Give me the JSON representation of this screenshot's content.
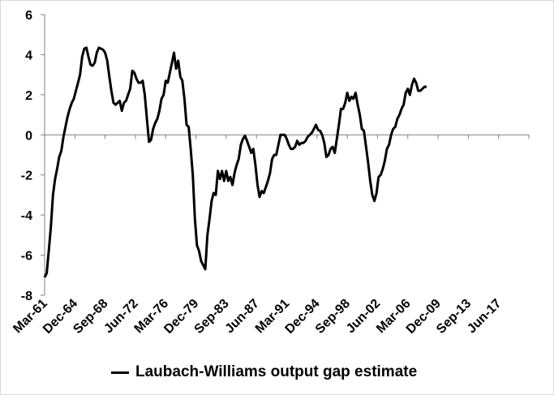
{
  "chart_data": {
    "type": "line",
    "title": "",
    "xlabel": "",
    "ylabel": "",
    "ylim": [
      -8,
      6
    ],
    "yticks": [
      -8,
      -6,
      -4,
      -2,
      0,
      2,
      4,
      6
    ],
    "xlim": [
      1961.0,
      2019.0
    ],
    "x_tick_labels": [
      "Mar-61",
      "Dec-64",
      "Sep-68",
      "Jun-72",
      "Mar-76",
      "Dec-79",
      "Sep-83",
      "Jun-87",
      "Mar-91",
      "Dec-94",
      "Sep-98",
      "Jun-02",
      "Mar-06",
      "Dec-09",
      "Sep-13",
      "Jun-17"
    ],
    "grid": false,
    "legend_position": "bottom",
    "series": [
      {
        "name": "Laubach-Williams output gap estimate",
        "color": "#000000",
        "points": [
          [
            1961.0,
            -7.1
          ],
          [
            1961.25,
            -6.9
          ],
          [
            1961.5,
            -5.8
          ],
          [
            1961.75,
            -4.6
          ],
          [
            1962.0,
            -3.0
          ],
          [
            1962.25,
            -2.2
          ],
          [
            1962.5,
            -1.7
          ],
          [
            1962.75,
            -1.1
          ],
          [
            1963.0,
            -0.8
          ],
          [
            1963.25,
            -0.1
          ],
          [
            1963.5,
            0.4
          ],
          [
            1963.75,
            0.9
          ],
          [
            1964.0,
            1.3
          ],
          [
            1964.25,
            1.6
          ],
          [
            1964.5,
            1.8
          ],
          [
            1964.75,
            2.2
          ],
          [
            1965.0,
            2.6
          ],
          [
            1965.25,
            3.0
          ],
          [
            1965.5,
            3.9
          ],
          [
            1965.75,
            4.3
          ],
          [
            1966.0,
            4.35
          ],
          [
            1966.25,
            3.9
          ],
          [
            1966.5,
            3.5
          ],
          [
            1966.75,
            3.45
          ],
          [
            1967.0,
            3.6
          ],
          [
            1967.25,
            4.1
          ],
          [
            1967.5,
            4.35
          ],
          [
            1967.75,
            4.3
          ],
          [
            1968.0,
            4.25
          ],
          [
            1968.25,
            4.1
          ],
          [
            1968.5,
            3.7
          ],
          [
            1968.75,
            2.9
          ],
          [
            1969.0,
            2.2
          ],
          [
            1969.25,
            1.6
          ],
          [
            1969.5,
            1.5
          ],
          [
            1969.75,
            1.6
          ],
          [
            1970.0,
            1.7
          ],
          [
            1970.25,
            1.2
          ],
          [
            1970.5,
            1.6
          ],
          [
            1970.75,
            1.7
          ],
          [
            1971.0,
            2.0
          ],
          [
            1971.25,
            2.3
          ],
          [
            1971.5,
            3.2
          ],
          [
            1971.75,
            3.1
          ],
          [
            1972.0,
            2.8
          ],
          [
            1972.25,
            2.6
          ],
          [
            1972.5,
            2.6
          ],
          [
            1972.75,
            2.7
          ],
          [
            1973.0,
            2.0
          ],
          [
            1973.25,
            0.8
          ],
          [
            1973.5,
            -0.35
          ],
          [
            1973.75,
            -0.25
          ],
          [
            1974.0,
            0.3
          ],
          [
            1974.25,
            0.6
          ],
          [
            1974.5,
            0.8
          ],
          [
            1974.75,
            1.2
          ],
          [
            1975.0,
            1.8
          ],
          [
            1975.25,
            2.0
          ],
          [
            1975.5,
            2.7
          ],
          [
            1975.75,
            2.6
          ],
          [
            1976.0,
            3.1
          ],
          [
            1976.25,
            3.6
          ],
          [
            1976.5,
            4.1
          ],
          [
            1976.75,
            3.3
          ],
          [
            1977.0,
            3.7
          ],
          [
            1977.25,
            2.9
          ],
          [
            1977.5,
            2.7
          ],
          [
            1977.75,
            1.8
          ],
          [
            1978.0,
            0.5
          ],
          [
            1978.25,
            0.4
          ],
          [
            1978.5,
            -0.7
          ],
          [
            1978.75,
            -2.0
          ],
          [
            1979.0,
            -4.2
          ],
          [
            1979.25,
            -5.5
          ],
          [
            1979.5,
            -5.8
          ],
          [
            1979.75,
            -6.3
          ],
          [
            1980.0,
            -6.5
          ],
          [
            1980.25,
            -6.7
          ],
          [
            1980.5,
            -5.0
          ],
          [
            1980.75,
            -4.2
          ],
          [
            1981.0,
            -3.3
          ],
          [
            1981.25,
            -2.9
          ],
          [
            1981.5,
            -3.0
          ],
          [
            1981.75,
            -1.8
          ],
          [
            1982.0,
            -2.2
          ],
          [
            1982.25,
            -1.8
          ],
          [
            1982.5,
            -2.3
          ],
          [
            1982.75,
            -1.8
          ],
          [
            1983.0,
            -2.3
          ],
          [
            1983.25,
            -2.1
          ],
          [
            1983.5,
            -2.5
          ],
          [
            1983.75,
            -1.9
          ],
          [
            1984.0,
            -1.5
          ],
          [
            1984.25,
            -1.2
          ],
          [
            1984.5,
            -0.5
          ],
          [
            1984.75,
            -0.2
          ],
          [
            1985.0,
            -0.05
          ],
          [
            1985.25,
            -0.3
          ],
          [
            1985.5,
            -0.6
          ],
          [
            1985.75,
            -0.9
          ],
          [
            1986.0,
            -0.7
          ],
          [
            1986.25,
            -1.5
          ],
          [
            1986.5,
            -2.5
          ],
          [
            1986.75,
            -3.1
          ],
          [
            1987.0,
            -2.8
          ],
          [
            1987.25,
            -2.9
          ],
          [
            1987.5,
            -2.6
          ],
          [
            1987.75,
            -2.3
          ],
          [
            1988.0,
            -1.9
          ],
          [
            1988.25,
            -1.2
          ],
          [
            1988.5,
            -1.0
          ],
          [
            1988.75,
            -1.0
          ],
          [
            1989.0,
            -0.5
          ],
          [
            1989.25,
            0.0
          ],
          [
            1989.5,
            0.0
          ],
          [
            1989.75,
            0.0
          ],
          [
            1990.0,
            -0.2
          ],
          [
            1990.25,
            -0.5
          ],
          [
            1990.5,
            -0.7
          ],
          [
            1990.75,
            -0.7
          ],
          [
            1991.0,
            -0.6
          ],
          [
            1991.25,
            -0.3
          ],
          [
            1991.5,
            -0.5
          ],
          [
            1991.75,
            -0.4
          ],
          [
            1992.0,
            -0.4
          ],
          [
            1992.25,
            -0.3
          ],
          [
            1992.5,
            -0.1
          ],
          [
            1992.75,
            0.0
          ],
          [
            1993.0,
            0.1
          ],
          [
            1993.25,
            0.3
          ],
          [
            1993.5,
            0.5
          ],
          [
            1993.75,
            0.25
          ],
          [
            1994.0,
            0.2
          ],
          [
            1994.25,
            0.0
          ],
          [
            1994.5,
            -0.4
          ],
          [
            1994.75,
            -1.1
          ],
          [
            1995.0,
            -1.0
          ],
          [
            1995.25,
            -0.7
          ],
          [
            1995.5,
            -0.6
          ],
          [
            1995.75,
            -0.9
          ],
          [
            1996.0,
            -0.2
          ],
          [
            1996.25,
            0.5
          ],
          [
            1996.5,
            1.3
          ],
          [
            1996.75,
            1.3
          ],
          [
            1997.0,
            1.6
          ],
          [
            1997.25,
            2.1
          ],
          [
            1997.5,
            1.7
          ],
          [
            1997.75,
            1.9
          ],
          [
            1998.0,
            1.8
          ],
          [
            1998.25,
            2.1
          ],
          [
            1998.5,
            1.5
          ],
          [
            1998.75,
            1.0
          ],
          [
            1999.0,
            0.3
          ],
          [
            1999.25,
            0.2
          ],
          [
            1999.5,
            -0.6
          ],
          [
            1999.75,
            -1.4
          ],
          [
            2000.0,
            -2.3
          ],
          [
            2000.25,
            -3.0
          ],
          [
            2000.5,
            -3.3
          ],
          [
            2000.75,
            -2.9
          ],
          [
            2001.0,
            -2.1
          ],
          [
            2001.25,
            -2.0
          ],
          [
            2001.5,
            -1.7
          ],
          [
            2001.75,
            -1.3
          ],
          [
            2002.0,
            -0.7
          ],
          [
            2002.25,
            -0.5
          ],
          [
            2002.5,
            0.0
          ],
          [
            2002.75,
            0.3
          ],
          [
            2003.0,
            0.4
          ],
          [
            2003.25,
            0.8
          ],
          [
            2003.5,
            1.0
          ],
          [
            2003.75,
            1.3
          ],
          [
            2004.0,
            1.5
          ],
          [
            2004.25,
            2.1
          ],
          [
            2004.5,
            2.3
          ],
          [
            2004.75,
            2.0
          ],
          [
            2005.0,
            2.5
          ],
          [
            2005.25,
            2.8
          ],
          [
            2005.5,
            2.6
          ],
          [
            2005.75,
            2.2
          ],
          [
            2006.0,
            2.2
          ],
          [
            2006.25,
            2.3
          ],
          [
            2006.5,
            2.4
          ],
          [
            2006.75,
            2.4
          ]
        ]
      }
    ]
  }
}
